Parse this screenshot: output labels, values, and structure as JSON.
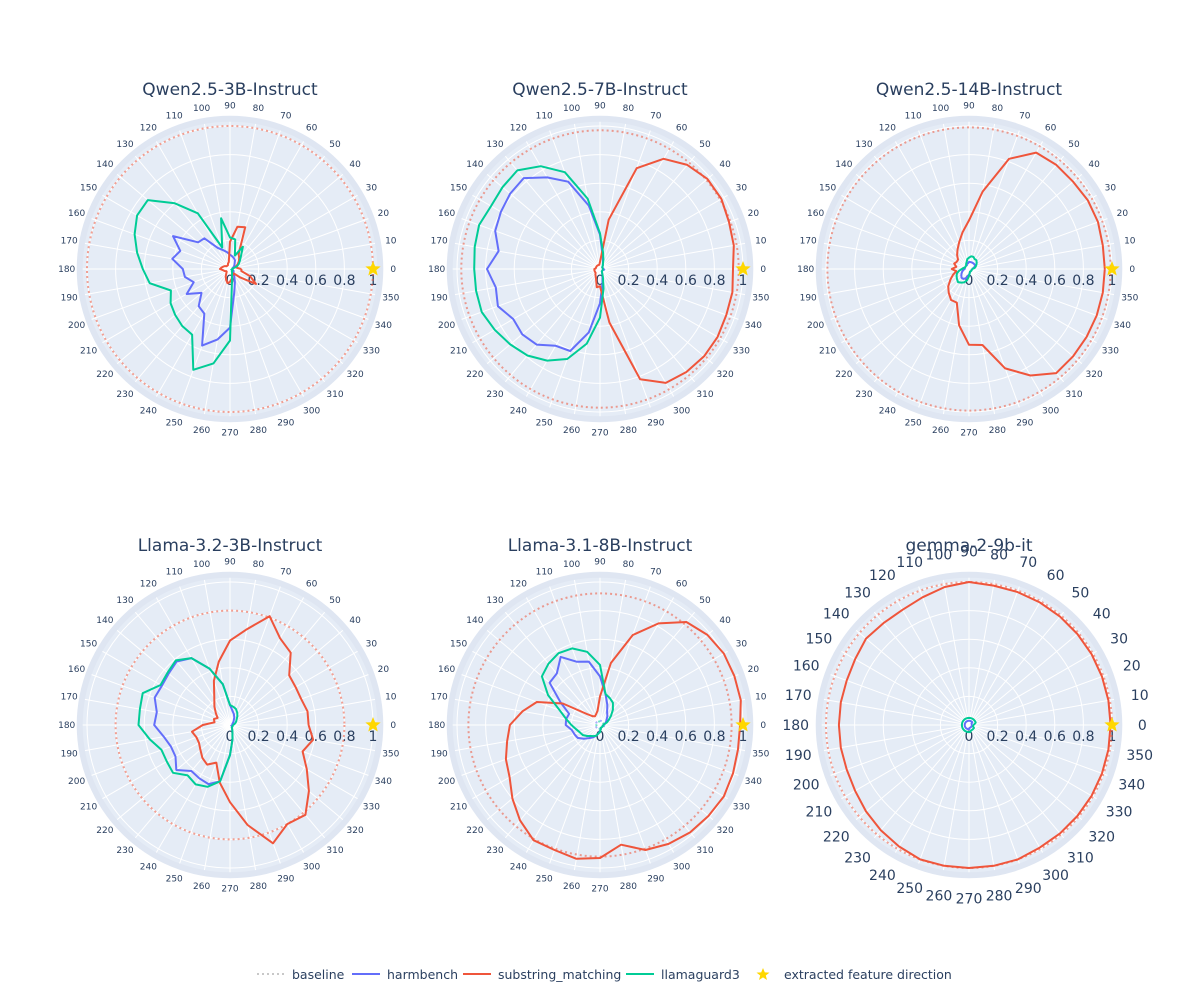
{
  "chart_data": [
    {
      "type": "polar-line",
      "title": "Qwen2.5-3B-Instruct",
      "theta": [
        0,
        10,
        20,
        30,
        40,
        50,
        60,
        70,
        80,
        90,
        100,
        110,
        120,
        130,
        140,
        150,
        160,
        170,
        180,
        190,
        200,
        210,
        220,
        230,
        240,
        250,
        260,
        270,
        280,
        290,
        300,
        310,
        320,
        330,
        340,
        350
      ],
      "radial_range": [
        0,
        1.03
      ],
      "radial_ticks": [
        "0",
        "0.2",
        "0.4",
        "0.6",
        "0.8",
        "1"
      ],
      "baseline": {
        "substring_matching": 1.0
      },
      "series": [
        {
          "name": "harmbench",
          "values": [
            0.02,
            0.02,
            0.02,
            0.03,
            0.04,
            0.05,
            0.07,
            0.08,
            0.09,
            0.1,
            0.12,
            0.14,
            0.17,
            0.28,
            0.29,
            0.46,
            0.37,
            0.41,
            0.33,
            0.32,
            0.27,
            0.35,
            0.26,
            0.34,
            0.36,
            0.57,
            0.5,
            0.41,
            0.17,
            0.1,
            0.06,
            0.04,
            0.03,
            0.03,
            0.02,
            0.02
          ]
        },
        {
          "name": "substring_matching",
          "values": [
            0.08,
            0.05,
            0.04,
            0.06,
            0.08,
            0.1,
            0.12,
            0.31,
            0.3,
            0.19,
            0.05,
            0.04,
            0.03,
            0.03,
            0.03,
            0.04,
            0.05,
            0.06,
            0.07,
            0.05,
            0.04,
            0.03,
            0.03,
            0.04,
            0.06,
            0.08,
            0.1,
            0.09,
            0.07,
            0.05,
            0.04,
            0.04,
            0.09,
            0.21,
            0.15,
            0.08
          ]
        },
        {
          "name": "llamaguard3",
          "values": [
            0.01,
            0.02,
            0.05,
            0.07,
            0.09,
            0.12,
            0.18,
            0.1,
            0.21,
            0.22,
            0.36,
            0.16,
            0.45,
            0.6,
            0.75,
            0.75,
            0.71,
            0.66,
            0.61,
            0.57,
            0.44,
            0.48,
            0.5,
            0.52,
            0.53,
            0.75,
            0.67,
            0.5,
            0.08,
            0.04,
            0.03,
            0.02,
            0.02,
            0.02,
            0.01,
            0.01
          ]
        }
      ],
      "star": {
        "theta": 0,
        "r": 1
      }
    },
    {
      "type": "polar-line",
      "title": "Qwen2.5-7B-Instruct",
      "theta": [
        0,
        10,
        20,
        30,
        40,
        50,
        60,
        70,
        80,
        90,
        100,
        110,
        120,
        130,
        140,
        150,
        160,
        170,
        180,
        190,
        200,
        210,
        220,
        230,
        240,
        250,
        260,
        270,
        280,
        290,
        300,
        310,
        320,
        330,
        340,
        350
      ],
      "radial_range": [
        0,
        1.03
      ],
      "radial_ticks": [
        "0",
        "0.2",
        "0.4",
        "0.6",
        "0.8",
        "1"
      ],
      "baseline": {
        "substring_matching": 0.97
      },
      "series": [
        {
          "name": "harmbench",
          "values": [
            0.03,
            0.02,
            0.02,
            0.02,
            0.02,
            0.03,
            0.04,
            0.06,
            0.1,
            0.24,
            0.45,
            0.65,
            0.74,
            0.83,
            0.82,
            0.8,
            0.78,
            0.72,
            0.79,
            0.74,
            0.76,
            0.7,
            0.71,
            0.69,
            0.62,
            0.61,
            0.45,
            0.24,
            0.1,
            0.05,
            0.03,
            0.02,
            0.02,
            0.02,
            0.02,
            0.03
          ]
        },
        {
          "name": "substring_matching",
          "values": [
            0.93,
            0.95,
            0.96,
            0.98,
            0.98,
            0.95,
            0.89,
            0.75,
            0.35,
            0.05,
            0.03,
            0.03,
            0.03,
            0.03,
            0.03,
            0.03,
            0.03,
            0.03,
            0.04,
            0.04,
            0.04,
            0.04,
            0.04,
            0.05,
            0.06,
            0.08,
            0.13,
            0.12,
            0.38,
            0.82,
            0.92,
            0.94,
            0.95,
            0.95,
            0.94,
            0.94
          ]
        },
        {
          "name": "llamaguard3",
          "values": [
            0.02,
            0.02,
            0.02,
            0.02,
            0.02,
            0.03,
            0.04,
            0.07,
            0.12,
            0.25,
            0.5,
            0.72,
            0.83,
            0.9,
            0.89,
            0.88,
            0.9,
            0.89,
            0.88,
            0.88,
            0.88,
            0.85,
            0.82,
            0.79,
            0.74,
            0.67,
            0.53,
            0.34,
            0.14,
            0.06,
            0.03,
            0.02,
            0.02,
            0.02,
            0.02,
            0.02
          ]
        }
      ],
      "star": {
        "theta": 0,
        "r": 1
      }
    },
    {
      "type": "polar-line",
      "title": "Qwen2.5-14B-Instruct",
      "theta": [
        0,
        10,
        20,
        30,
        40,
        50,
        60,
        70,
        80,
        90,
        100,
        110,
        120,
        130,
        140,
        150,
        160,
        170,
        180,
        190,
        200,
        210,
        220,
        230,
        240,
        250,
        260,
        270,
        280,
        290,
        300,
        310,
        320,
        330,
        340,
        350
      ],
      "radial_range": [
        0,
        1.03
      ],
      "radial_ticks": [
        "0",
        "0.2",
        "0.4",
        "0.6",
        "0.8",
        "1"
      ],
      "baseline": {
        "substring_matching": 0.99
      },
      "series": [
        {
          "name": "harmbench",
          "values": [
            0.02,
            0.03,
            0.04,
            0.05,
            0.05,
            0.05,
            0.05,
            0.05,
            0.05,
            0.05,
            0.04,
            0.04,
            0.03,
            0.03,
            0.03,
            0.03,
            0.03,
            0.03,
            0.03,
            0.04,
            0.05,
            0.06,
            0.07,
            0.08,
            0.08,
            0.07,
            0.05,
            0.04,
            0.03,
            0.02,
            0.02,
            0.02,
            0.02,
            0.02,
            0.02,
            0.02
          ]
        },
        {
          "name": "substring_matching",
          "values": [
            0.95,
            0.95,
            0.96,
            0.96,
            0.95,
            0.95,
            0.94,
            0.82,
            0.55,
            0.34,
            0.26,
            0.2,
            0.16,
            0.13,
            0.1,
            0.1,
            0.11,
            0.09,
            0.12,
            0.09,
            0.12,
            0.15,
            0.19,
            0.22,
            0.25,
            0.25,
            0.4,
            0.53,
            0.54,
            0.74,
            0.86,
            0.95,
            0.95,
            0.95,
            0.95,
            0.95
          ]
        },
        {
          "name": "llamaguard3",
          "values": [
            0.02,
            0.04,
            0.05,
            0.06,
            0.07,
            0.08,
            0.08,
            0.09,
            0.09,
            0.08,
            0.07,
            0.05,
            0.04,
            0.03,
            0.03,
            0.03,
            0.03,
            0.04,
            0.05,
            0.07,
            0.09,
            0.1,
            0.11,
            0.12,
            0.11,
            0.1,
            0.08,
            0.05,
            0.03,
            0.02,
            0.02,
            0.02,
            0.02,
            0.02,
            0.02,
            0.02
          ]
        }
      ],
      "star": {
        "theta": 0,
        "r": 1
      }
    },
    {
      "type": "polar-line",
      "title": "Llama-3.2-3B-Instruct",
      "theta": [
        0,
        10,
        20,
        30,
        40,
        50,
        60,
        70,
        80,
        90,
        100,
        110,
        120,
        130,
        140,
        150,
        160,
        170,
        180,
        190,
        200,
        210,
        220,
        230,
        240,
        250,
        260,
        270,
        280,
        290,
        300,
        310,
        320,
        330,
        340,
        350
      ],
      "radial_range": [
        0,
        1.03
      ],
      "radial_ticks": [
        "0",
        "0.2",
        "0.4",
        "0.6",
        "0.8",
        "1"
      ],
      "baseline": {
        "substring_matching": 0.8
      },
      "series": [
        {
          "name": "harmbench",
          "values": [
            0.01,
            0.02,
            0.02,
            0.02,
            0.03,
            0.04,
            0.06,
            0.08,
            0.1,
            0.14,
            0.29,
            0.42,
            0.54,
            0.58,
            0.56,
            0.55,
            0.56,
            0.52,
            0.53,
            0.47,
            0.44,
            0.44,
            0.49,
            0.42,
            0.43,
            0.44,
            0.4,
            0.21,
            0.1,
            0.05,
            0.03,
            0.02,
            0.02,
            0.02,
            0.01,
            0.01
          ]
        },
        {
          "name": "substring_matching",
          "values": [
            0.55,
            0.55,
            0.53,
            0.53,
            0.54,
            0.66,
            0.7,
            0.81,
            0.68,
            0.59,
            0.45,
            0.33,
            0.22,
            0.17,
            0.13,
            0.1,
            0.12,
            0.11,
            0.19,
            0.27,
            0.25,
            0.25,
            0.27,
            0.3,
            0.32,
            0.28,
            0.41,
            0.54,
            0.71,
            0.88,
            0.8,
            0.82,
            0.72,
            0.62,
            0.54,
            0.59
          ]
        },
        {
          "name": "llamaguard3",
          "values": [
            0.02,
            0.03,
            0.04,
            0.05,
            0.06,
            0.08,
            0.1,
            0.12,
            0.13,
            0.14,
            0.29,
            0.42,
            0.54,
            0.59,
            0.57,
            0.56,
            0.65,
            0.64,
            0.64,
            0.57,
            0.51,
            0.51,
            0.52,
            0.46,
            0.48,
            0.46,
            0.4,
            0.21,
            0.1,
            0.05,
            0.03,
            0.02,
            0.02,
            0.02,
            0.02,
            0.02
          ]
        }
      ],
      "star": {
        "theta": 0,
        "r": 1
      }
    },
    {
      "type": "polar-line",
      "title": "Llama-3.1-8B-Instruct",
      "theta": [
        0,
        10,
        20,
        30,
        40,
        50,
        60,
        70,
        80,
        90,
        100,
        110,
        120,
        130,
        140,
        150,
        160,
        170,
        180,
        190,
        200,
        210,
        220,
        230,
        240,
        250,
        260,
        270,
        280,
        290,
        300,
        310,
        320,
        330,
        340,
        350
      ],
      "radial_range": [
        0,
        1.03
      ],
      "radial_ticks": [
        "0",
        "0.2",
        "0.4",
        "0.6",
        "0.8",
        "1"
      ],
      "baseline": {
        "substring_matching": 0.92,
        "harmbench": 0.03,
        "llamaguard3": 0.025
      },
      "series": [
        {
          "name": "harmbench",
          "values": [
            0.02,
            0.03,
            0.04,
            0.05,
            0.06,
            0.08,
            0.1,
            0.15,
            0.22,
            0.34,
            0.45,
            0.47,
            0.55,
            0.47,
            0.46,
            0.32,
            0.23,
            0.24,
            0.24,
            0.2,
            0.19,
            0.18,
            0.15,
            0.12,
            0.1,
            0.08,
            0.06,
            0.04,
            0.03,
            0.02,
            0.02,
            0.02,
            0.02,
            0.02,
            0.02,
            0.02
          ]
        },
        {
          "name": "substring_matching",
          "values": [
            0.98,
            1.0,
            1.0,
            1.0,
            0.98,
            0.94,
            0.82,
            0.67,
            0.44,
            0.2,
            0.1,
            0.08,
            0.07,
            0.08,
            0.12,
            0.3,
            0.47,
            0.55,
            0.63,
            0.66,
            0.7,
            0.73,
            0.8,
            0.87,
            0.93,
            0.93,
            0.95,
            0.93,
            0.85,
            0.93,
            0.96,
            0.98,
            0.99,
            1.0,
            0.99,
            0.98
          ]
        },
        {
          "name": "llamaguard3",
          "values": [
            0.02,
            0.03,
            0.05,
            0.07,
            0.1,
            0.14,
            0.18,
            0.2,
            0.22,
            0.42,
            0.52,
            0.57,
            0.58,
            0.56,
            0.53,
            0.42,
            0.3,
            0.24,
            0.2,
            0.17,
            0.15,
            0.14,
            0.12,
            0.1,
            0.09,
            0.08,
            0.06,
            0.05,
            0.03,
            0.02,
            0.02,
            0.02,
            0.02,
            0.02,
            0.02,
            0.02
          ]
        }
      ],
      "star": {
        "theta": 0,
        "r": 1
      }
    },
    {
      "type": "polar-line",
      "title": "gemma-2-9b-it",
      "theta": [
        0,
        10,
        20,
        30,
        40,
        50,
        60,
        70,
        80,
        90,
        100,
        110,
        120,
        130,
        140,
        150,
        160,
        170,
        180,
        190,
        200,
        210,
        220,
        230,
        240,
        250,
        260,
        270,
        280,
        290,
        300,
        310,
        320,
        330,
        340,
        350
      ],
      "radial_range": [
        0,
        1.03
      ],
      "radial_ticks": [
        "0",
        "0.2",
        "0.4",
        "0.6",
        "0.8",
        "1"
      ],
      "baseline": {
        "substring_matching": 1.0
      },
      "series": [
        {
          "name": "harmbench",
          "values": [
            0.02,
            0.02,
            0.02,
            0.02,
            0.03,
            0.03,
            0.03,
            0.03,
            0.03,
            0.03,
            0.03,
            0.03,
            0.03,
            0.03,
            0.03,
            0.03,
            0.03,
            0.03,
            0.03,
            0.03,
            0.03,
            0.03,
            0.03,
            0.03,
            0.03,
            0.03,
            0.03,
            0.03,
            0.02,
            0.02,
            0.02,
            0.02,
            0.02,
            0.02,
            0.02,
            0.02
          ]
        },
        {
          "name": "substring_matching",
          "values": [
            0.99,
            0.99,
            0.99,
            0.99,
            0.99,
            0.99,
            0.99,
            0.99,
            0.99,
            1.0,
            0.98,
            0.95,
            0.93,
            0.93,
            0.94,
            0.92,
            0.91,
            0.91,
            0.91,
            0.91,
            0.91,
            0.92,
            0.94,
            0.96,
            0.98,
            1.0,
            1.0,
            1.0,
            1.0,
            1.0,
            0.99,
            0.99,
            0.99,
            0.99,
            0.99,
            0.99
          ]
        },
        {
          "name": "llamaguard3",
          "values": [
            0.03,
            0.04,
            0.05,
            0.05,
            0.05,
            0.05,
            0.05,
            0.05,
            0.05,
            0.05,
            0.05,
            0.05,
            0.05,
            0.05,
            0.05,
            0.05,
            0.05,
            0.05,
            0.05,
            0.05,
            0.05,
            0.05,
            0.05,
            0.05,
            0.05,
            0.05,
            0.05,
            0.05,
            0.05,
            0.04,
            0.04,
            0.04,
            0.04,
            0.04,
            0.03,
            0.03
          ]
        }
      ],
      "star": {
        "theta": 0,
        "r": 1
      }
    }
  ],
  "legend": {
    "placement": "bottom-center",
    "items": [
      {
        "name": "baseline",
        "label": "baseline",
        "style": "dotted",
        "color": "#c8c8c8"
      },
      {
        "name": "harmbench",
        "label": "harmbench",
        "style": "solid",
        "color": "#636efa"
      },
      {
        "name": "substring_matching",
        "label": "substring_matching",
        "style": "solid",
        "color": "#ef553b"
      },
      {
        "name": "llamaguard3",
        "label": "llamaguard3",
        "style": "solid",
        "color": "#00cc96"
      },
      {
        "name": "extracted_feature_direction",
        "label": "extracted feature direction",
        "style": "star",
        "color": "#ffd700"
      }
    ]
  },
  "colors": {
    "harmbench": "#636efa",
    "substring_matching": "#ef553b",
    "llamaguard3": "#00cc96",
    "star": "#ffd700",
    "plot_bg": "#e5ecf6",
    "grid": "#ffffff",
    "text": "#2a3f5f"
  }
}
